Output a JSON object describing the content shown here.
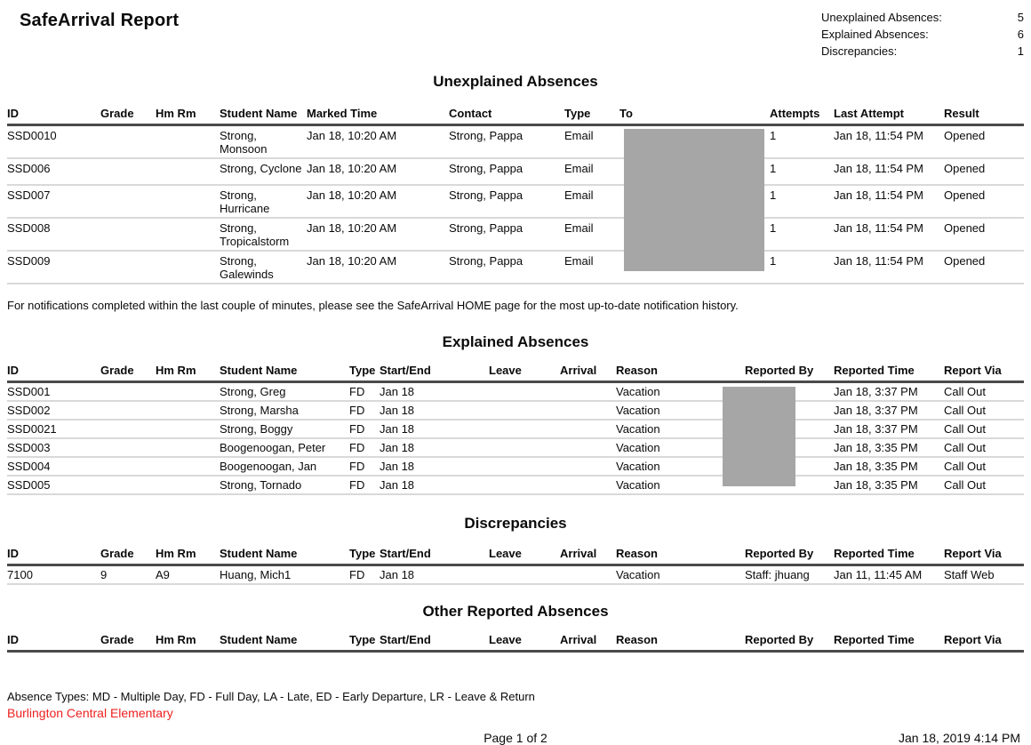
{
  "report": {
    "title": "SafeArrival Report",
    "summary": [
      {
        "label": "Unexplained Absences:",
        "value": "5"
      },
      {
        "label": "Explained Absences:",
        "value": "6"
      },
      {
        "label": "Discrepancies:",
        "value": "1"
      }
    ]
  },
  "sections": {
    "unexplained": {
      "title": "Unexplained Absences",
      "columns": [
        "ID",
        "Grade",
        "Hm Rm",
        "Student Name",
        "Marked Time",
        "Contact",
        "Type",
        "To",
        "Attempts",
        "Last Attempt",
        "Result"
      ],
      "rows": [
        [
          "SSD0010",
          "",
          "",
          "Strong, Monsoon",
          "Jan 18, 10:20 AM",
          "Strong, Pappa",
          "Email",
          "",
          "1",
          "Jan 18, 11:54 PM",
          "Opened"
        ],
        [
          "SSD006",
          "",
          "",
          "Strong, Cyclone",
          "Jan 18, 10:20 AM",
          "Strong, Pappa",
          "Email",
          "",
          "1",
          "Jan 18, 11:54 PM",
          "Opened"
        ],
        [
          "SSD007",
          "",
          "",
          "Strong, Hurricane",
          "Jan 18, 10:20 AM",
          "Strong, Pappa",
          "Email",
          "",
          "1",
          "Jan 18, 11:54 PM",
          "Opened"
        ],
        [
          "SSD008",
          "",
          "",
          "Strong, Tropicalstorm",
          "Jan 18, 10:20 AM",
          "Strong, Pappa",
          "Email",
          "",
          "1",
          "Jan 18, 11:54 PM",
          "Opened"
        ],
        [
          "SSD009",
          "",
          "",
          "Strong, Galewinds",
          "Jan 18, 10:20 AM",
          "Strong, Pappa",
          "Email",
          "",
          "1",
          "Jan 18, 11:54 PM",
          "Opened"
        ]
      ],
      "note": "For notifications completed within the last couple of minutes, please see the SafeArrival HOME page for the most up-to-date notification history."
    },
    "explained": {
      "title": "Explained Absences",
      "columns": [
        "ID",
        "Grade",
        "Hm Rm",
        "Student Name",
        "Type",
        "Start/End",
        "Leave",
        "Arrival",
        "Reason",
        "Reported By",
        "Reported Time",
        "Report Via"
      ],
      "rows": [
        [
          "SSD001",
          "",
          "",
          "Strong, Greg",
          "FD",
          "Jan 18",
          "",
          "",
          "Vacation",
          "",
          "Jan 18, 3:37 PM",
          "Call Out"
        ],
        [
          "SSD002",
          "",
          "",
          "Strong, Marsha",
          "FD",
          "Jan 18",
          "",
          "",
          "Vacation",
          "",
          "Jan 18, 3:37 PM",
          "Call Out"
        ],
        [
          "SSD0021",
          "",
          "",
          "Strong, Boggy",
          "FD",
          "Jan 18",
          "",
          "",
          "Vacation",
          "",
          "Jan 18, 3:37 PM",
          "Call Out"
        ],
        [
          "SSD003",
          "",
          "",
          "Boogenoogan, Peter",
          "FD",
          "Jan 18",
          "",
          "",
          "Vacation",
          "",
          "Jan 18, 3:35 PM",
          "Call Out"
        ],
        [
          "SSD004",
          "",
          "",
          "Boogenoogan, Jan",
          "FD",
          "Jan 18",
          "",
          "",
          "Vacation",
          "",
          "Jan 18, 3:35 PM",
          "Call Out"
        ],
        [
          "SSD005",
          "",
          "",
          "Strong, Tornado",
          "FD",
          "Jan 18",
          "",
          "",
          "Vacation",
          "",
          "Jan 18, 3:35 PM",
          "Call Out"
        ]
      ]
    },
    "discrepancies": {
      "title": "Discrepancies",
      "columns": [
        "ID",
        "Grade",
        "Hm Rm",
        "Student Name",
        "Type",
        "Start/End",
        "Leave",
        "Arrival",
        "Reason",
        "Reported By",
        "Reported Time",
        "Report Via"
      ],
      "rows": [
        [
          "7100",
          "9",
          "A9",
          "Huang, Mich1",
          "FD",
          "Jan 18",
          "",
          "",
          "Vacation",
          "Staff: jhuang",
          "Jan 11, 11:45 AM",
          "Staff Web"
        ]
      ]
    },
    "other": {
      "title": "Other Reported Absences",
      "columns": [
        "ID",
        "Grade",
        "Hm Rm",
        "Student Name",
        "Type",
        "Start/End",
        "Leave",
        "Arrival",
        "Reason",
        "Reported By",
        "Reported Time",
        "Report Via"
      ],
      "rows": []
    }
  },
  "redactions": [
    {
      "name": "to-column-redaction"
    },
    {
      "name": "reported-by-redaction"
    }
  ],
  "footer": {
    "absence_types": "Absence Types: MD - Multiple Day, FD - Full Day, LA - Late, ED - Early Departure, LR - Leave & Return",
    "school_name": "Burlington Central Elementary",
    "page_indicator": "Page 1 of 2",
    "generated_at": "Jan 18, 2019 4:14 PM"
  },
  "colors": {
    "redaction_gray": "#a6a6a6",
    "school_red": "#ee2020"
  }
}
